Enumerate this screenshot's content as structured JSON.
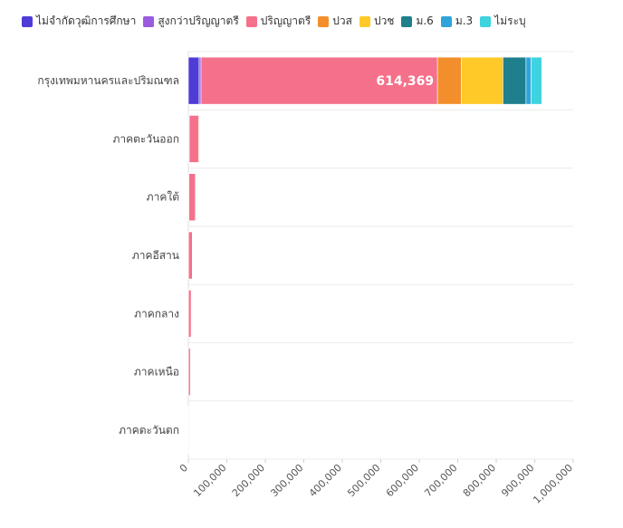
{
  "chart_data": {
    "type": "bar",
    "orientation": "horizontal",
    "stacked": true,
    "categories": [
      "กรุงเทพมหานครและปริมณฑล",
      "ภาคตะวันออก",
      "ภาคใต้",
      "ภาคอีสาน",
      "ภาคกลาง",
      "ภาคเหนือ",
      "ภาคตะวันตก"
    ],
    "series": [
      {
        "name": "ไม่จำกัดวุฒิการศึกษา",
        "color": "#4F3BD6",
        "values": [
          28000,
          1000,
          500,
          200,
          200,
          100,
          50
        ]
      },
      {
        "name": "สูงกว่าปริญญาตรี",
        "color": "#9B5BE0",
        "values": [
          5000,
          1500,
          800,
          300,
          300,
          200,
          100
        ]
      },
      {
        "name": "ปริญญาตรี",
        "color": "#F5708A",
        "values": [
          614369,
          24000,
          17000,
          10000,
          7000,
          5000,
          1500
        ]
      },
      {
        "name": "ปวส",
        "color": "#F28E2B",
        "values": [
          62000,
          2000,
          500,
          200,
          100,
          100,
          50
        ]
      },
      {
        "name": "ปวช",
        "color": "#FFC928",
        "values": [
          108000,
          1500,
          300,
          100,
          100,
          50,
          50
        ]
      },
      {
        "name": "ม.6",
        "color": "#1F7F8C",
        "values": [
          60000,
          500,
          800,
          100,
          100,
          50,
          50
        ]
      },
      {
        "name": "ม.3",
        "color": "#2FA4DB",
        "values": [
          13000,
          300,
          100,
          50,
          50,
          50,
          20
        ]
      },
      {
        "name": "ไม่ระบุ",
        "color": "#3ED3DF",
        "values": [
          28000,
          200,
          100,
          50,
          50,
          50,
          20
        ]
      }
    ],
    "data_labels": [
      {
        "category": "กรุงเทพมหานครและปริมณฑล",
        "series": "ปริญญาตรี",
        "text": "614,369"
      }
    ],
    "xlim": [
      0,
      1000000
    ],
    "xticks": [
      "0",
      "100,000",
      "200,000",
      "300,000",
      "400,000",
      "500,000",
      "600,000",
      "700,000",
      "800,000",
      "900,000",
      "1,000,000"
    ],
    "grid": true,
    "legend_position": "top-left"
  }
}
